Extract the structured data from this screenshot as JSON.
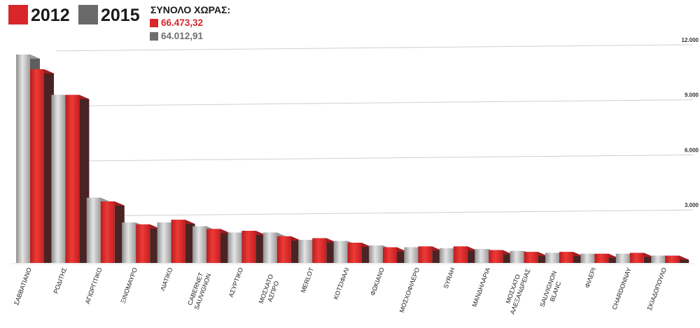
{
  "legend": [
    {
      "label": "2012",
      "color": "#d8262a"
    },
    {
      "label": "2015",
      "color": "#696969"
    }
  ],
  "totals": {
    "title": "ΣΥΝΟΛΟ ΧΩΡΑΣ:",
    "rows": [
      {
        "value": "66.473,32",
        "color": "#d8262a"
      },
      {
        "value": "64.012,91",
        "color": "#6e6e6e"
      }
    ]
  },
  "chart_data": {
    "type": "bar",
    "title": "",
    "xlabel": "",
    "ylabel": "",
    "ylim": [
      0,
      12000
    ],
    "yticks": [
      {
        "value": 3000,
        "label": "3.000"
      },
      {
        "value": 6000,
        "label": "6.000"
      },
      {
        "value": 9000,
        "label": "9.000"
      },
      {
        "value": 12000,
        "label": "12.000"
      }
    ],
    "categories": [
      [
        "ΣΑΒΒΑΤΙΑΝΟ"
      ],
      [
        "ΡΟΔΙΤΗΣ"
      ],
      [
        "ΑΓΙΩΡΓΙΤΙΚΟ"
      ],
      [
        "ΞΙΝΟΜΑΥΡΟ"
      ],
      [
        "ΛΙΑΤΙΚΟ"
      ],
      [
        "CABERNET",
        "SAUVIGNON"
      ],
      [
        "ΑΣΥΡΤΙΚΟ"
      ],
      [
        "ΜΟΣΧΑΤΟ",
        "ΑΣΠΡΟ"
      ],
      [
        "MERLOT"
      ],
      [
        "ΚΟΤΣΙΦΑΛΙ"
      ],
      [
        "ΦΩΚΙΑΝΟ"
      ],
      [
        "ΜΟΣΧΟΦΙΛΕΡΟ"
      ],
      [
        "SYRAH"
      ],
      [
        "ΜΑΝΔΗΛΑΡΙΑ"
      ],
      [
        "ΜΟΣΧΑΤΟ",
        "ΑΛΕΞΑΝΔΡΕΙΑΣ"
      ],
      [
        "SAUVIGNON",
        "BLANC"
      ],
      [
        "ΦΙΛΕΡΙ"
      ],
      [
        "CHARDONNAY"
      ],
      [
        "ΣΚΙΑΔΟΠΟΥΛΟ"
      ]
    ],
    "series": [
      {
        "name": "2015",
        "color": "#b0b0b0",
        "values": [
          11350,
          9150,
          3550,
          2200,
          2200,
          2000,
          1650,
          1650,
          1250,
          1200,
          950,
          850,
          800,
          750,
          650,
          550,
          500,
          500,
          400
        ]
      },
      {
        "name": "2012",
        "color": "#d8262a",
        "values": [
          10550,
          9150,
          3350,
          2100,
          2350,
          1850,
          1750,
          1450,
          1350,
          1100,
          850,
          900,
          900,
          700,
          600,
          600,
          500,
          550,
          400
        ]
      }
    ]
  }
}
